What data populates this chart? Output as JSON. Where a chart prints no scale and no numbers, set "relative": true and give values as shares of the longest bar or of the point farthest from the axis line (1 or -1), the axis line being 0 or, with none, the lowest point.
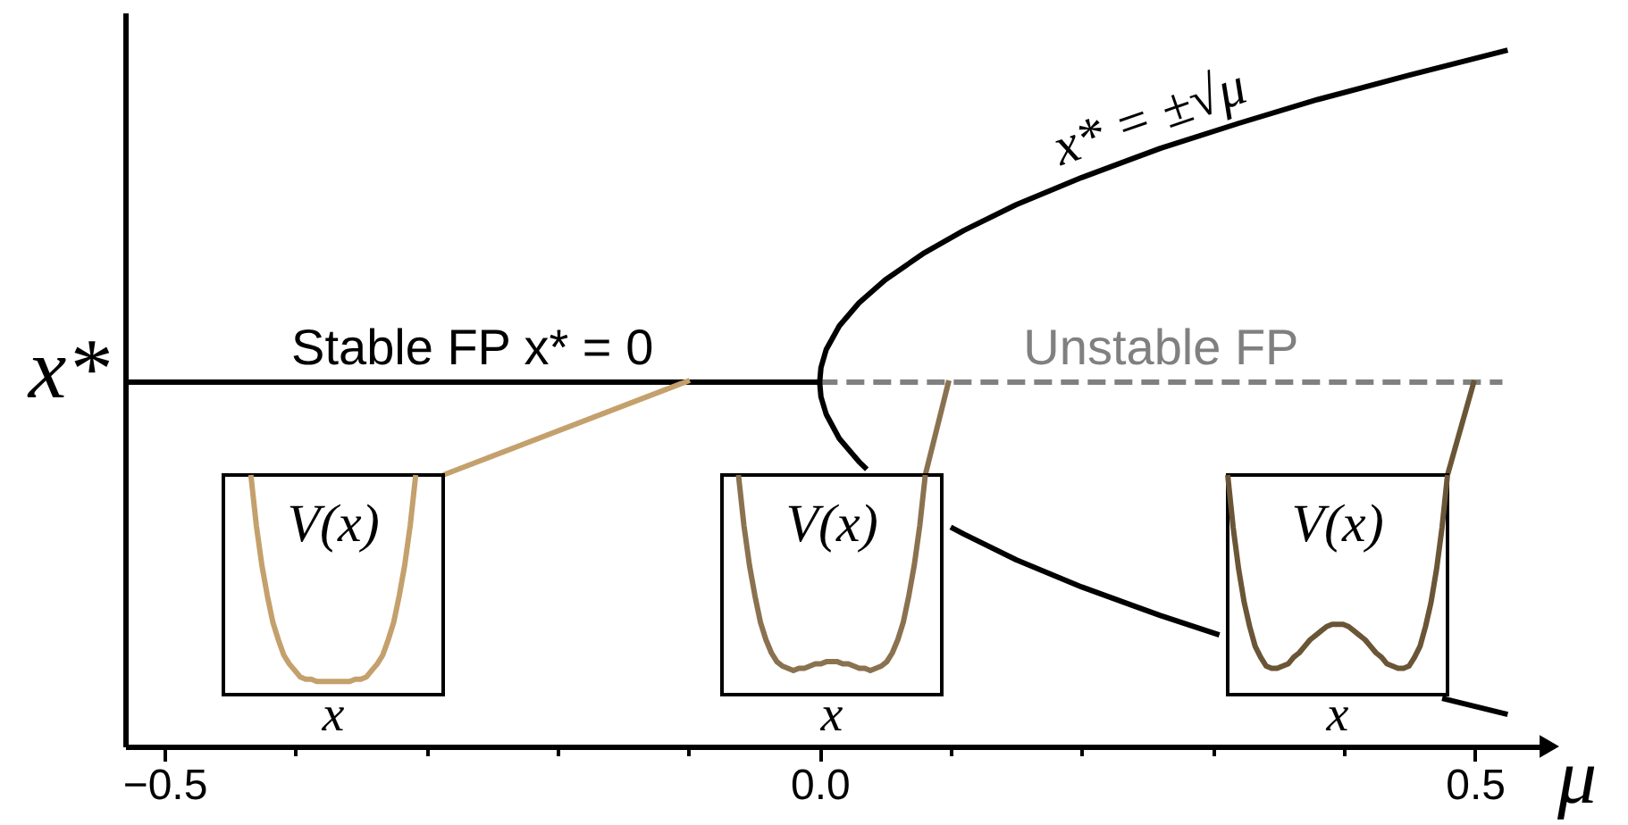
{
  "chart_data": [
    {
      "type": "line",
      "relative": true,
      "xlabel": "μ",
      "ylabel": "x*",
      "xlim": [
        -0.53,
        0.55
      ],
      "xticks": [
        {
          "value": -0.5,
          "label": "−0.5"
        },
        {
          "value": -0.4,
          "label": null
        },
        {
          "value": -0.3,
          "label": null
        },
        {
          "value": -0.2,
          "label": null
        },
        {
          "value": -0.1,
          "label": null
        },
        {
          "value": 0,
          "label": "0.0"
        },
        {
          "value": 0.1,
          "label": null
        },
        {
          "value": 0.2,
          "label": null
        },
        {
          "value": 0.3,
          "label": null
        },
        {
          "value": 0.4,
          "label": null
        },
        {
          "value": 0.5,
          "label": "0.5"
        }
      ],
      "tick_labels": "x",
      "series": [
        {
          "name": "Stable FP x* = 0",
          "color": "#000000",
          "line_style": "solid",
          "x": [
            -0.53,
            0
          ],
          "values": [
            0.523,
            0.523
          ]
        },
        {
          "name": "Unstable FP",
          "color": "#808080",
          "line_style": "dashed",
          "x": [
            0,
            0.521
          ],
          "values": [
            0.523,
            0.523
          ]
        },
        {
          "name": "x* = ±√μ",
          "color": "#000000",
          "line_style": "solid",
          "x": [
            0.525,
            0.45,
            0.38,
            0.32,
            0.26,
            0.2,
            0.15,
            0.11,
            0.08,
            0.05,
            0.03,
            0.015,
            0.005,
            0.001,
            0,
            0.001,
            0.005,
            0.015,
            0.03,
            0.036,
            0.05,
            0.08,
            0.1,
            0.11,
            0.15,
            0.2,
            0.26,
            0.305,
            0.32,
            0.38,
            0.45,
            0.475,
            0.525
          ],
          "values": [
            1.0,
            0.964,
            0.929,
            0.895,
            0.859,
            0.817,
            0.778,
            0.741,
            0.709,
            0.67,
            0.637,
            0.604,
            0.57,
            0.544,
            0.523,
            0.502,
            0.477,
            0.442,
            0.409,
            0.398,
            null,
            null,
            0.315,
            0.305,
            0.268,
            0.229,
            0.188,
            0.16,
            null,
            null,
            null,
            0.069,
            0.046
          ]
        }
      ]
    },
    {
      "type": "line",
      "relative": true,
      "ylabel": "V(x)",
      "xlabel": "x",
      "tick_labels": false,
      "categories": [
        null,
        null,
        null,
        null,
        null,
        null,
        null,
        null,
        null,
        null,
        null,
        null,
        null,
        null,
        null,
        null,
        null,
        null,
        null,
        null,
        null,
        null,
        null,
        null,
        null,
        null,
        null,
        null,
        null,
        null,
        null,
        null,
        null,
        null,
        null,
        null,
        null,
        null,
        null,
        null,
        null
      ],
      "series": [
        {
          "color": "#c4a06c",
          "values": [
            null,
            null,
            null,
            null,
            null,
            1.0,
            0.77,
            0.59,
            0.45,
            0.33,
            0.25,
            0.18,
            0.14,
            0.11,
            0.08,
            0.07,
            0.07,
            0.06,
            0.06,
            0.06,
            0.06,
            0.06,
            0.06,
            0.06,
            0.07,
            0.07,
            0.08,
            0.11,
            0.14,
            0.18,
            0.25,
            0.33,
            0.45,
            0.59,
            0.77,
            1.0,
            null,
            null,
            null,
            null,
            null
          ]
        }
      ]
    },
    {
      "type": "line",
      "relative": true,
      "ylabel": "V(x)",
      "xlabel": "x",
      "tick_labels": false,
      "categories": [
        null,
        null,
        null,
        null,
        null,
        null,
        null,
        null,
        null,
        null,
        null,
        null,
        null,
        null,
        null,
        null,
        null,
        null,
        null,
        null,
        null,
        null,
        null,
        null,
        null,
        null,
        null,
        null,
        null,
        null,
        null,
        null,
        null,
        null,
        null,
        null,
        null,
        null,
        null,
        null,
        null
      ],
      "series": [
        {
          "color": "#8a7250",
          "values": [
            null,
            null,
            null,
            1.0,
            0.77,
            0.59,
            0.45,
            0.33,
            0.25,
            0.19,
            0.15,
            0.13,
            0.12,
            0.11,
            0.12,
            0.12,
            0.13,
            0.14,
            0.14,
            0.15,
            0.15,
            0.15,
            0.14,
            0.14,
            0.13,
            0.12,
            0.12,
            0.11,
            0.12,
            0.13,
            0.15,
            0.19,
            0.25,
            0.33,
            0.45,
            0.59,
            0.77,
            1.0,
            null,
            null,
            null
          ]
        }
      ]
    },
    {
      "type": "line",
      "relative": true,
      "ylabel": "V(x)",
      "xlabel": "x",
      "tick_labels": false,
      "categories": [
        null,
        null,
        null,
        null,
        null,
        null,
        null,
        null,
        null,
        null,
        null,
        null,
        null,
        null,
        null,
        null,
        null,
        null,
        null,
        null,
        null,
        null,
        null,
        null,
        null,
        null,
        null,
        null,
        null,
        null,
        null,
        null,
        null,
        null,
        null,
        null,
        null,
        null,
        null,
        null,
        null
      ],
      "series": [
        {
          "color": "#6a5536",
          "values": [
            1.0,
            0.76,
            0.57,
            0.42,
            0.31,
            0.22,
            0.17,
            0.13,
            0.12,
            0.12,
            0.13,
            0.14,
            0.17,
            0.19,
            0.22,
            0.25,
            0.27,
            0.29,
            0.31,
            0.32,
            0.32,
            0.32,
            0.31,
            0.29,
            0.27,
            0.25,
            0.22,
            0.19,
            0.17,
            0.14,
            0.13,
            0.12,
            0.12,
            0.13,
            0.17,
            0.22,
            0.31,
            0.42,
            0.57,
            0.76,
            1.0
          ]
        }
      ]
    }
  ]
}
